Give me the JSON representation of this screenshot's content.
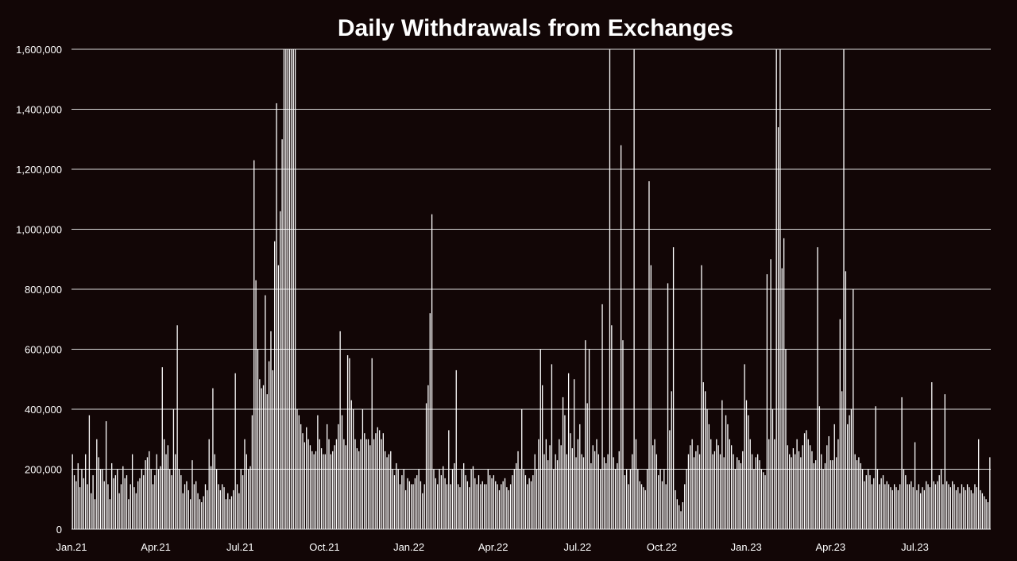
{
  "chart_data": {
    "type": "bar",
    "title": "Daily Withdrawals from Exchanges",
    "xlabel": "",
    "ylabel": "",
    "ylim": [
      0,
      1600000
    ],
    "y_ticks": [
      "0",
      "200,000",
      "400,000",
      "600,000",
      "800,000",
      "1,000,000",
      "1,200,000",
      "1,400,000",
      "1,600,000"
    ],
    "x_ticks": [
      "Jan.21",
      "Apr.21",
      "Jul.21",
      "Oct.21",
      "Jan.22",
      "Apr.22",
      "Jul.22",
      "Oct.22",
      "Jan.23",
      "Apr.23",
      "Jul.23"
    ],
    "grid": true,
    "colors": {
      "bars": "#ffffff",
      "grid": "#d9d9d9",
      "background": "#120606",
      "text": "#ffffff"
    },
    "x_start": "Jan.21",
    "x_end": "Sep.23",
    "series": [
      {
        "values": [
          250000,
          180000,
          160000,
          220000,
          140000,
          200000,
          170000,
          250000,
          150000,
          380000,
          120000,
          180000,
          100000,
          300000,
          240000,
          200000,
          200000,
          160000,
          360000,
          150000,
          100000,
          220000,
          170000,
          180000,
          200000,
          120000,
          150000,
          210000,
          170000,
          180000,
          100000,
          150000,
          250000,
          140000,
          120000,
          160000,
          170000,
          200000,
          180000,
          230000,
          240000,
          260000,
          200000,
          150000,
          180000,
          250000,
          200000,
          210000,
          540000,
          300000,
          250000,
          280000,
          200000,
          180000,
          400000,
          250000,
          680000,
          200000,
          180000,
          120000,
          150000,
          160000,
          130000,
          100000,
          230000,
          150000,
          160000,
          120000,
          100000,
          90000,
          110000,
          150000,
          130000,
          300000,
          210000,
          470000,
          250000,
          200000,
          150000,
          130000,
          150000,
          140000,
          100000,
          120000,
          100000,
          110000,
          130000,
          520000,
          150000,
          120000,
          200000,
          180000,
          300000,
          250000,
          200000,
          210000,
          380000,
          1230000,
          830000,
          600000,
          500000,
          470000,
          480000,
          780000,
          450000,
          560000,
          660000,
          530000,
          960000,
          1420000,
          880000,
          1060000,
          1300000,
          1600000,
          1600000,
          1600000,
          1600000,
          1600000,
          1600000,
          1600000,
          400000,
          380000,
          350000,
          320000,
          290000,
          340000,
          300000,
          280000,
          260000,
          250000,
          260000,
          380000,
          300000,
          270000,
          250000,
          250000,
          350000,
          300000,
          250000,
          260000,
          280000,
          300000,
          350000,
          660000,
          380000,
          300000,
          280000,
          580000,
          570000,
          430000,
          400000,
          300000,
          270000,
          260000,
          300000,
          400000,
          320000,
          300000,
          300000,
          280000,
          570000,
          300000,
          320000,
          340000,
          330000,
          300000,
          320000,
          260000,
          240000,
          250000,
          260000,
          200000,
          180000,
          220000,
          200000,
          150000,
          180000,
          200000,
          130000,
          170000,
          160000,
          150000,
          150000,
          170000,
          180000,
          200000,
          160000,
          120000,
          150000,
          420000,
          480000,
          720000,
          1050000,
          200000,
          170000,
          150000,
          200000,
          180000,
          210000,
          170000,
          150000,
          330000,
          150000,
          200000,
          220000,
          530000,
          150000,
          140000,
          200000,
          220000,
          180000,
          160000,
          140000,
          200000,
          210000,
          170000,
          150000,
          180000,
          150000,
          160000,
          150000,
          150000,
          200000,
          180000,
          170000,
          180000,
          160000,
          150000,
          130000,
          150000,
          160000,
          170000,
          140000,
          130000,
          150000,
          180000,
          200000,
          220000,
          260000,
          200000,
          400000,
          200000,
          180000,
          150000,
          170000,
          160000,
          180000,
          250000,
          200000,
          300000,
          600000,
          480000,
          250000,
          300000,
          230000,
          280000,
          550000,
          200000,
          250000,
          230000,
          300000,
          280000,
          440000,
          380000,
          250000,
          520000,
          320000,
          270000,
          500000,
          240000,
          300000,
          350000,
          250000,
          240000,
          630000,
          420000,
          600000,
          220000,
          280000,
          260000,
          300000,
          250000,
          200000,
          750000,
          240000,
          220000,
          250000,
          1600000,
          680000,
          240000,
          200000,
          220000,
          260000,
          1280000,
          630000,
          180000,
          200000,
          150000,
          200000,
          250000,
          1600000,
          300000,
          200000,
          160000,
          150000,
          140000,
          130000,
          200000,
          1160000,
          880000,
          280000,
          300000,
          250000,
          180000,
          200000,
          160000,
          200000,
          150000,
          820000,
          330000,
          460000,
          940000,
          130000,
          100000,
          80000,
          60000,
          90000,
          150000,
          200000,
          250000,
          280000,
          300000,
          240000,
          260000,
          280000,
          250000,
          880000,
          490000,
          460000,
          400000,
          350000,
          300000,
          250000,
          260000,
          300000,
          280000,
          250000,
          430000,
          240000,
          380000,
          350000,
          300000,
          280000,
          250000,
          200000,
          240000,
          230000,
          220000,
          260000,
          550000,
          430000,
          380000,
          300000,
          250000,
          200000,
          240000,
          250000,
          230000,
          200000,
          190000,
          180000,
          850000,
          300000,
          900000,
          400000,
          300000,
          1600000,
          1340000,
          1600000,
          870000,
          970000,
          600000,
          280000,
          250000,
          240000,
          270000,
          250000,
          300000,
          260000,
          240000,
          280000,
          320000,
          330000,
          300000,
          280000,
          260000,
          220000,
          230000,
          940000,
          410000,
          250000,
          200000,
          220000,
          280000,
          310000,
          230000,
          230000,
          350000,
          240000,
          300000,
          700000,
          460000,
          1600000,
          860000,
          350000,
          380000,
          400000,
          800000,
          250000,
          230000,
          240000,
          220000,
          200000,
          160000,
          180000,
          200000,
          180000,
          150000,
          170000,
          410000,
          200000,
          150000,
          170000,
          180000,
          150000,
          160000,
          150000,
          140000,
          130000,
          150000,
          140000,
          130000,
          150000,
          440000,
          200000,
          180000,
          150000,
          150000,
          160000,
          140000,
          290000,
          130000,
          150000,
          120000,
          140000,
          130000,
          160000,
          150000,
          140000,
          490000,
          160000,
          150000,
          160000,
          180000,
          200000,
          150000,
          450000,
          160000,
          150000,
          140000,
          160000,
          150000,
          130000,
          140000,
          120000,
          150000,
          140000,
          130000,
          150000,
          140000,
          130000,
          120000,
          150000,
          140000,
          300000,
          130000,
          120000,
          110000,
          100000,
          90000,
          240000
        ]
      }
    ]
  }
}
